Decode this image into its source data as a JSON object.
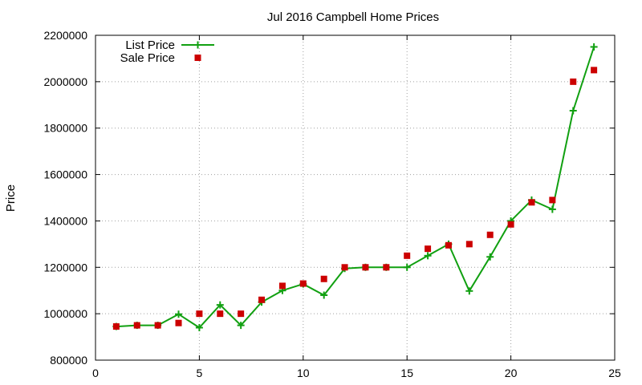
{
  "chart_data": {
    "type": "line",
    "title": "Jul 2016 Campbell Home Prices",
    "xlabel": "",
    "ylabel": "Price",
    "xlim": [
      0,
      25
    ],
    "ylim": [
      800000,
      2200000
    ],
    "x_ticks": [
      "0",
      "5",
      "10",
      "15",
      "20",
      "25"
    ],
    "y_ticks": [
      "800000",
      "1000000",
      "1200000",
      "1400000",
      "1600000",
      "1800000",
      "2000000",
      "2200000"
    ],
    "grid": true,
    "legend_position": "top-left",
    "series": [
      {
        "name": "List Price",
        "style": "line-with-plus-markers",
        "color": "#11a011",
        "points": [
          [
            1,
            945000
          ],
          [
            2,
            950000
          ],
          [
            3,
            950000
          ],
          [
            4,
            998000
          ],
          [
            5,
            940000
          ],
          [
            6,
            1038000
          ],
          [
            7,
            950000
          ],
          [
            8,
            1050000
          ],
          [
            9,
            1100000
          ],
          [
            10,
            1128000
          ],
          [
            11,
            1080000
          ],
          [
            12,
            1195000
          ],
          [
            13,
            1200000
          ],
          [
            14,
            1200000
          ],
          [
            15,
            1200000
          ],
          [
            16,
            1250000
          ],
          [
            17,
            1300000
          ],
          [
            18,
            1098000
          ],
          [
            19,
            1245000
          ],
          [
            20,
            1400000
          ],
          [
            21,
            1490000
          ],
          [
            22,
            1450000
          ],
          [
            23,
            1875000
          ],
          [
            24,
            2150000
          ]
        ]
      },
      {
        "name": "Sale Price",
        "style": "square-markers",
        "color": "#cc0000",
        "points": [
          [
            1,
            945000
          ],
          [
            2,
            950000
          ],
          [
            3,
            950000
          ],
          [
            4,
            960000
          ],
          [
            5,
            1000000
          ],
          [
            6,
            1000000
          ],
          [
            7,
            1000000
          ],
          [
            8,
            1060000
          ],
          [
            9,
            1120000
          ],
          [
            10,
            1130000
          ],
          [
            11,
            1150000
          ],
          [
            12,
            1200000
          ],
          [
            13,
            1200000
          ],
          [
            14,
            1200000
          ],
          [
            15,
            1250000
          ],
          [
            16,
            1280000
          ],
          [
            17,
            1295000
          ],
          [
            18,
            1300000
          ],
          [
            19,
            1340000
          ],
          [
            20,
            1385000
          ],
          [
            21,
            1480000
          ],
          [
            22,
            1490000
          ],
          [
            23,
            2000000
          ],
          [
            24,
            2050000
          ]
        ]
      }
    ]
  }
}
